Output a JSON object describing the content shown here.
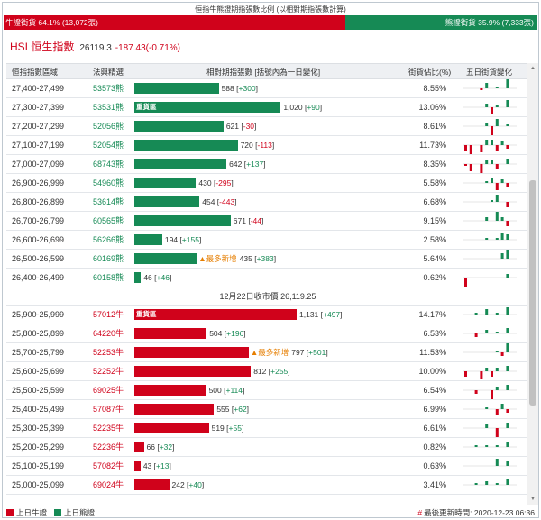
{
  "title": "恒指牛熊證期指張數比例 (以相對期指張數計算)",
  "ratio": {
    "bull_label": "牛證街貨 64.1% (13,072張)",
    "bear_label": "熊證街貨 35.9% (7,333張)",
    "bull_fraction": 0.641,
    "bull_color": "#d0021b",
    "bear_color": "#168a55"
  },
  "index": {
    "name": "HSI 恒生指數",
    "price": "26119.3",
    "change": "-187.43(-0.71%)"
  },
  "headers": {
    "range": "恒指指數區域",
    "code": "法興精選",
    "contracts": "相對期指張數 [括號內為一日變化]",
    "ratio": "街貨佔比(%)",
    "trend": "五日街貨變化"
  },
  "heavy_label": "重貨區",
  "newest_label": "▲最多新增",
  "bear_rows": [
    {
      "range": "27,400-27,499",
      "code": "53573熊",
      "count": 588,
      "count_text": "588",
      "change": "+300",
      "ratio": "8.55%",
      "spark": [
        0,
        0,
        0,
        -1,
        3,
        0,
        1,
        0,
        5,
        0
      ]
    },
    {
      "range": "27,300-27,399",
      "code": "53531熊",
      "count": 1020,
      "count_text": "1,020",
      "change": "+90",
      "ratio": "13.06%",
      "heavy": true,
      "spark": [
        0,
        0,
        0,
        0,
        2,
        -4,
        1,
        0,
        4,
        0
      ]
    },
    {
      "range": "27,200-27,299",
      "code": "52056熊",
      "count": 621,
      "count_text": "621",
      "change": "-30",
      "ratio": "8.61%",
      "spark": [
        0,
        0,
        0,
        0,
        2,
        -5,
        4,
        0,
        1,
        0
      ]
    },
    {
      "range": "27,100-27,199",
      "code": "52054熊",
      "count": 720,
      "count_text": "720",
      "change": "-113",
      "ratio": "11.73%",
      "spark": [
        -3,
        -5,
        0,
        -4,
        3,
        3,
        -3,
        2,
        -2,
        0
      ]
    },
    {
      "range": "27,000-27,099",
      "code": "68743熊",
      "count": 642,
      "count_text": "642",
      "change": "+137",
      "ratio": "8.35%",
      "spark": [
        -1,
        -4,
        0,
        -5,
        2,
        2,
        -3,
        0,
        3,
        0
      ]
    },
    {
      "range": "26,900-26,999",
      "code": "54960熊",
      "count": 430,
      "count_text": "430",
      "change": "-295",
      "ratio": "5.58%",
      "spark": [
        0,
        0,
        0,
        0,
        1,
        3,
        -4,
        2,
        -2,
        0
      ]
    },
    {
      "range": "26,800-26,899",
      "code": "53614熊",
      "count": 454,
      "count_text": "454",
      "change": "-443",
      "ratio": "6.68%",
      "spark": [
        0,
        0,
        0,
        0,
        0,
        1,
        4,
        0,
        -3,
        0
      ]
    },
    {
      "range": "26,700-26,799",
      "code": "60565熊",
      "count": 671,
      "count_text": "671",
      "change": "-44",
      "ratio": "9.15%",
      "spark": [
        0,
        0,
        0,
        0,
        2,
        0,
        5,
        2,
        -3,
        0
      ]
    },
    {
      "range": "26,600-26,699",
      "code": "56266熊",
      "count": 194,
      "count_text": "194",
      "change": "+155",
      "ratio": "2.58%",
      "spark": [
        0,
        0,
        0,
        0,
        1,
        0,
        1,
        4,
        3,
        0
      ]
    },
    {
      "range": "26,500-26,599",
      "code": "60169熊",
      "count": 435,
      "count_text": "435",
      "change": "+383",
      "ratio": "5.64%",
      "newest": true,
      "spark": [
        0,
        0,
        0,
        0,
        0,
        0,
        0,
        3,
        5,
        0
      ]
    },
    {
      "range": "26,400-26,499",
      "code": "60158熊",
      "count": 46,
      "count_text": "46",
      "change": "+46",
      "ratio": "0.62%",
      "spark": [
        -5,
        0,
        0,
        0,
        0,
        0,
        0,
        0,
        2,
        0
      ]
    }
  ],
  "close_label": "12月22日收市價 26,119.25",
  "bull_rows": [
    {
      "range": "25,900-25,999",
      "code": "57012牛",
      "count": 1131,
      "count_text": "1,131",
      "change": "+497",
      "ratio": "14.17%",
      "heavy": true,
      "spark": [
        0,
        0,
        1,
        0,
        3,
        0,
        1,
        0,
        4,
        0
      ]
    },
    {
      "range": "25,800-25,899",
      "code": "64220牛",
      "count": 504,
      "count_text": "504",
      "change": "+196",
      "ratio": "6.53%",
      "spark": [
        0,
        0,
        -2,
        0,
        2,
        0,
        1,
        0,
        3,
        0
      ]
    },
    {
      "range": "25,700-25,799",
      "code": "52253牛",
      "count": 797,
      "count_text": "797",
      "change": "+501",
      "ratio": "11.53%",
      "newest": true,
      "spark": [
        0,
        0,
        0,
        0,
        0,
        0,
        1,
        -2,
        5,
        0
      ]
    },
    {
      "range": "25,600-25,699",
      "code": "52252牛",
      "count": 812,
      "count_text": "812",
      "change": "+255",
      "ratio": "10.00%",
      "spark": [
        -3,
        0,
        0,
        -4,
        2,
        -3,
        2,
        0,
        3,
        0
      ]
    },
    {
      "range": "25,500-25,599",
      "code": "69025牛",
      "count": 500,
      "count_text": "500",
      "change": "+114",
      "ratio": "6.54%",
      "spark": [
        0,
        0,
        -2,
        0,
        0,
        -5,
        2,
        0,
        3,
        0
      ]
    },
    {
      "range": "25,400-25,499",
      "code": "57087牛",
      "count": 555,
      "count_text": "555",
      "change": "+62",
      "ratio": "6.99%",
      "spark": [
        0,
        0,
        0,
        0,
        1,
        0,
        -3,
        3,
        -2,
        0
      ]
    },
    {
      "range": "25,300-25,399",
      "code": "52235牛",
      "count": 519,
      "count_text": "519",
      "change": "+55",
      "ratio": "6.61%",
      "spark": [
        0,
        0,
        0,
        0,
        2,
        0,
        -5,
        0,
        3,
        0
      ]
    },
    {
      "range": "25,200-25,299",
      "code": "52236牛",
      "count": 66,
      "count_text": "66",
      "change": "+32",
      "ratio": "0.82%",
      "spark": [
        0,
        0,
        1,
        0,
        1,
        0,
        1,
        0,
        3,
        0
      ]
    },
    {
      "range": "25,100-25,199",
      "code": "57082牛",
      "count": 43,
      "count_text": "43",
      "change": "+13",
      "ratio": "0.63%",
      "spark": [
        0,
        0,
        0,
        0,
        0,
        0,
        4,
        0,
        3,
        0
      ]
    },
    {
      "range": "25,000-25,099",
      "code": "69024牛",
      "count": 242,
      "count_text": "242",
      "change": "+40",
      "ratio": "3.41%",
      "spark": [
        0,
        0,
        1,
        0,
        2,
        0,
        1,
        0,
        3,
        0
      ]
    }
  ],
  "legend": {
    "bull": "上日牛證",
    "bear": "上日熊證"
  },
  "updated": {
    "mark": "#",
    "text": "最後更新時間: 2020-12-23 06:36"
  },
  "scroll_icons": {
    "up": "triangle-up-icon",
    "down": "triangle-down-icon"
  }
}
